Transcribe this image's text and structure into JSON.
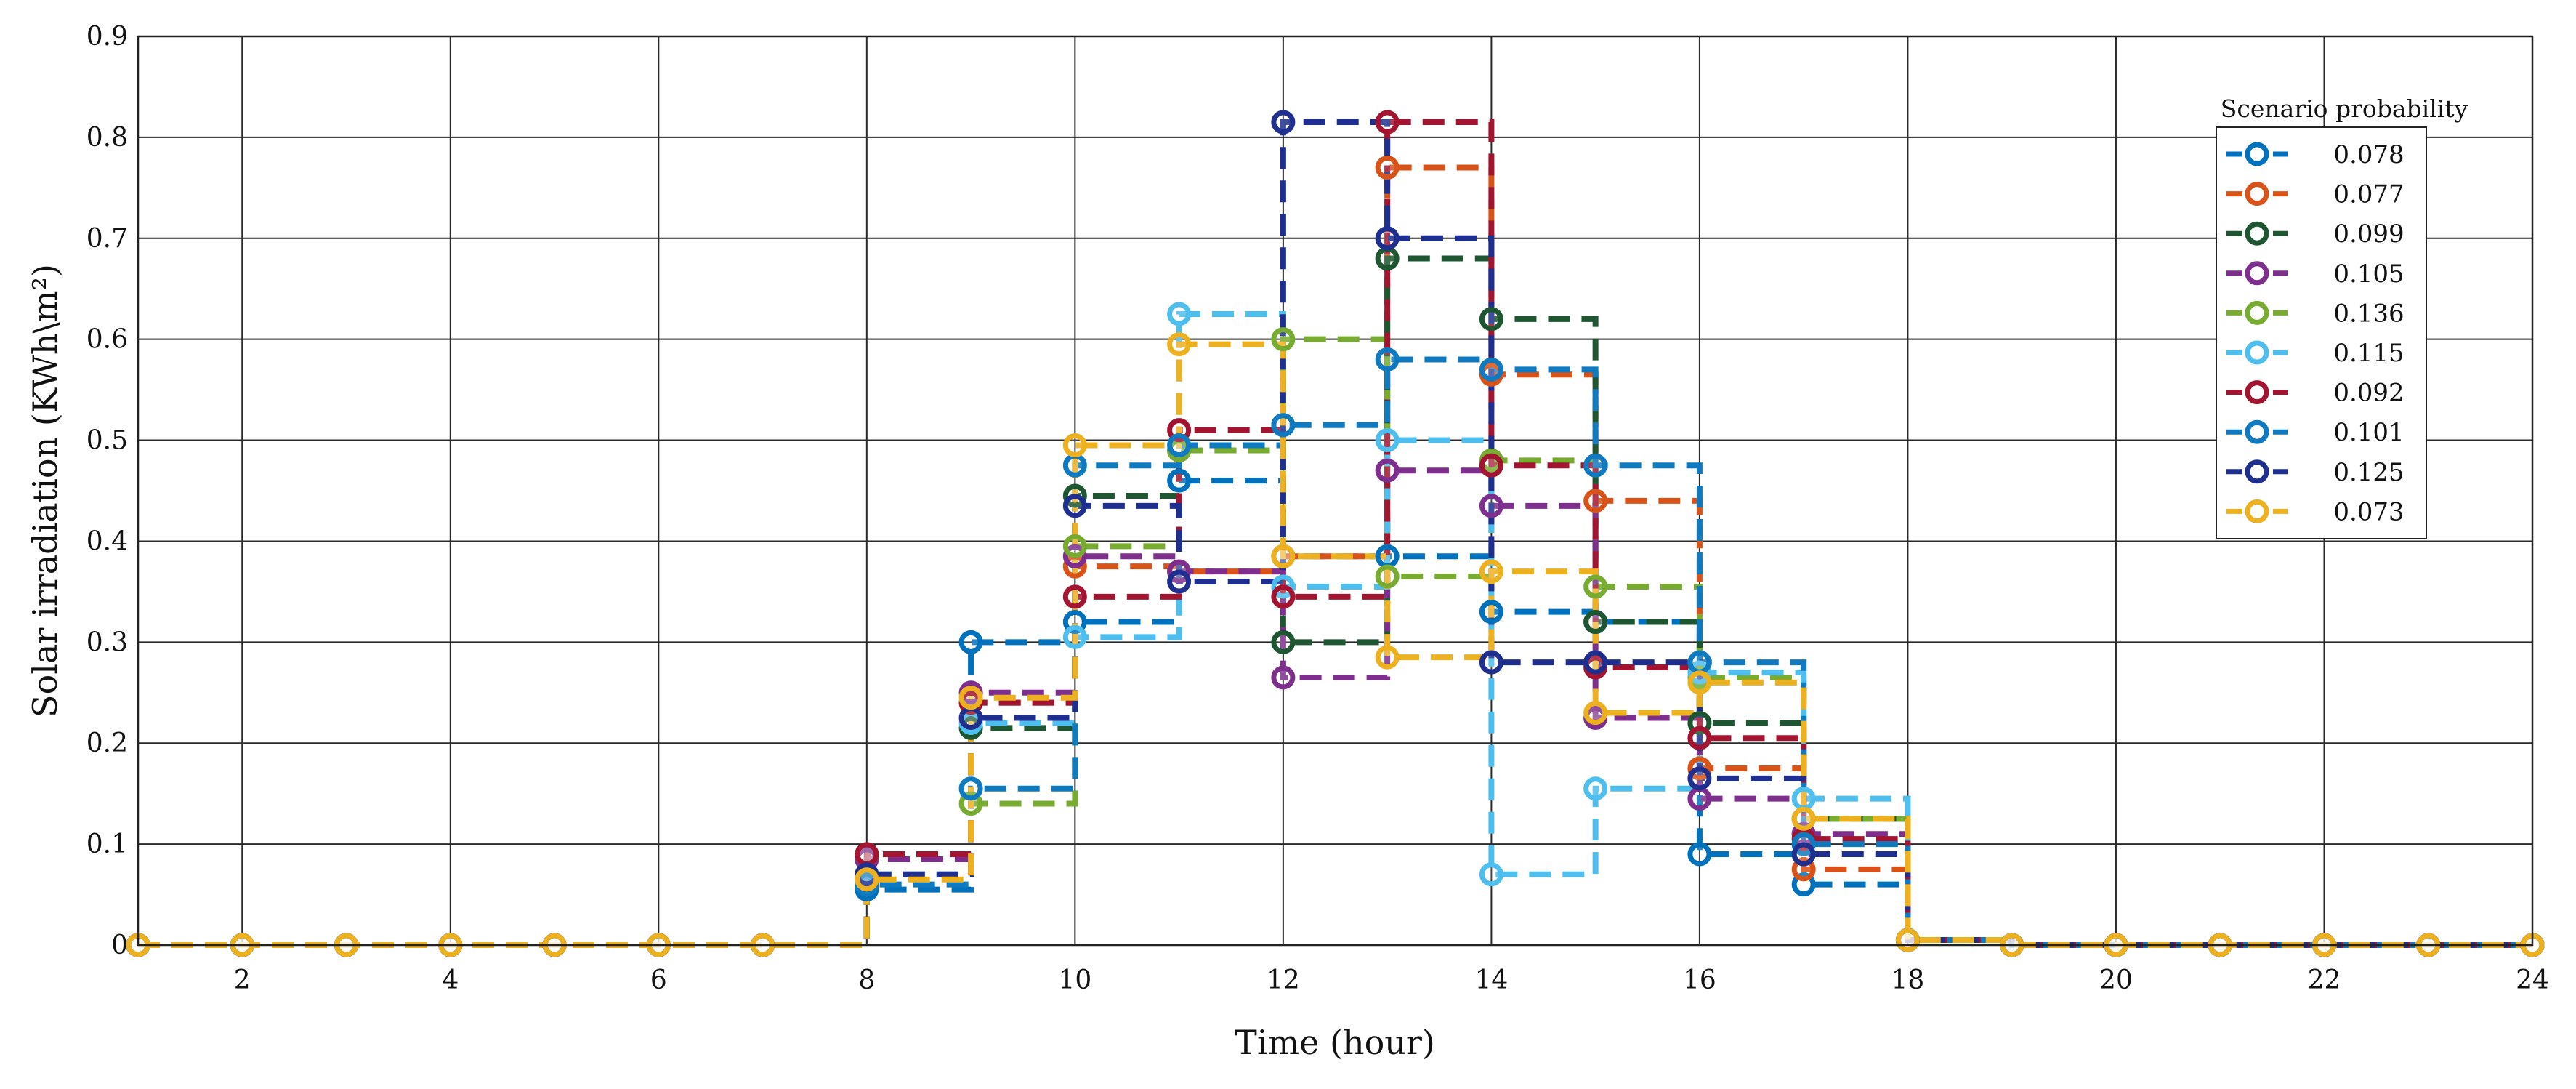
{
  "chart_data": {
    "type": "line",
    "style": "step",
    "xlabel": "Time (hour)",
    "ylabel": "Solar irradiation (KWh\\m²)",
    "xlim": [
      1,
      24
    ],
    "ylim": [
      0,
      0.9
    ],
    "xticks": [
      2,
      4,
      6,
      8,
      10,
      12,
      14,
      16,
      18,
      20,
      22,
      24
    ],
    "xtick_labels": [
      "2",
      "4",
      "6",
      "8",
      "10",
      "12",
      "14",
      "16",
      "18",
      "20",
      "22",
      "24"
    ],
    "yticks": [
      0,
      0.1,
      0.2,
      0.3,
      0.4,
      0.5,
      0.6,
      0.7,
      0.8,
      0.9
    ],
    "ytick_labels": [
      "0",
      "0.1",
      "0.2",
      "0.3",
      "0.4",
      "0.5",
      "0.6",
      "0.7",
      "0.8",
      "0.9"
    ],
    "grid": true,
    "legend": {
      "title": "Scenario probability",
      "placement": "top-right"
    },
    "x": [
      1,
      2,
      3,
      4,
      5,
      6,
      7,
      8,
      9,
      10,
      11,
      12,
      13,
      14,
      15,
      16,
      17,
      18,
      19,
      20,
      21,
      22,
      23,
      24
    ],
    "series": [
      {
        "name": "0.078",
        "color": "#0072BD",
        "values": [
          0,
          0,
          0,
          0,
          0,
          0,
          0,
          0.055,
          0.3,
          0.32,
          0.46,
          0.385,
          0.385,
          0.33,
          0.32,
          0.09,
          0.06,
          0.005,
          0,
          0,
          0,
          0,
          0,
          0
        ]
      },
      {
        "name": "0.077",
        "color": "#D95319",
        "values": [
          0,
          0,
          0,
          0,
          0,
          0,
          0,
          0.085,
          0.24,
          0.375,
          0.37,
          0.385,
          0.77,
          0.565,
          0.44,
          0.175,
          0.075,
          0.005,
          0,
          0,
          0,
          0,
          0,
          0
        ]
      },
      {
        "name": "0.099",
        "color": "#1E5631",
        "values": [
          0,
          0,
          0,
          0,
          0,
          0,
          0,
          0.09,
          0.215,
          0.445,
          0.49,
          0.3,
          0.68,
          0.62,
          0.32,
          0.22,
          0.125,
          0.005,
          0,
          0,
          0,
          0,
          0,
          0
        ]
      },
      {
        "name": "0.105",
        "color": "#7E2F8E",
        "values": [
          0,
          0,
          0,
          0,
          0,
          0,
          0,
          0.085,
          0.25,
          0.385,
          0.37,
          0.265,
          0.47,
          0.435,
          0.225,
          0.145,
          0.11,
          0.005,
          0,
          0,
          0,
          0,
          0,
          0
        ]
      },
      {
        "name": "0.136",
        "color": "#77AC30",
        "values": [
          0,
          0,
          0,
          0,
          0,
          0,
          0,
          0.09,
          0.14,
          0.395,
          0.49,
          0.6,
          0.365,
          0.48,
          0.355,
          0.265,
          0.125,
          0.005,
          0,
          0,
          0,
          0,
          0,
          0
        ]
      },
      {
        "name": "0.115",
        "color": "#4DBEEE",
        "values": [
          0,
          0,
          0,
          0,
          0,
          0,
          0,
          0.07,
          0.22,
          0.305,
          0.625,
          0.355,
          0.5,
          0.07,
          0.155,
          0.27,
          0.145,
          0.005,
          0,
          0,
          0,
          0,
          0,
          0
        ]
      },
      {
        "name": "0.092",
        "color": "#A2142F",
        "values": [
          0,
          0,
          0,
          0,
          0,
          0,
          0,
          0.09,
          0.24,
          0.345,
          0.51,
          0.345,
          0.815,
          0.475,
          0.275,
          0.205,
          0.105,
          0.005,
          0,
          0,
          0,
          0,
          0,
          0
        ]
      },
      {
        "name": "0.101",
        "color": "#0F7AC0",
        "values": [
          0,
          0,
          0,
          0,
          0,
          0,
          0,
          0.06,
          0.155,
          0.475,
          0.495,
          0.515,
          0.58,
          0.57,
          0.475,
          0.28,
          0.1,
          0.005,
          0,
          0,
          0,
          0,
          0,
          0
        ]
      },
      {
        "name": "0.125",
        "color": "#1F2F8F",
        "values": [
          0,
          0,
          0,
          0,
          0,
          0,
          0,
          0.07,
          0.225,
          0.435,
          0.36,
          0.815,
          0.7,
          0.28,
          0.28,
          0.165,
          0.09,
          0.005,
          0,
          0,
          0,
          0,
          0,
          0
        ]
      },
      {
        "name": "0.073",
        "color": "#EDB120",
        "values": [
          0,
          0,
          0,
          0,
          0,
          0,
          0,
          0.065,
          0.245,
          0.495,
          0.595,
          0.385,
          0.285,
          0.37,
          0.23,
          0.26,
          0.125,
          0.005,
          0,
          0,
          0,
          0,
          0,
          0
        ]
      }
    ]
  }
}
